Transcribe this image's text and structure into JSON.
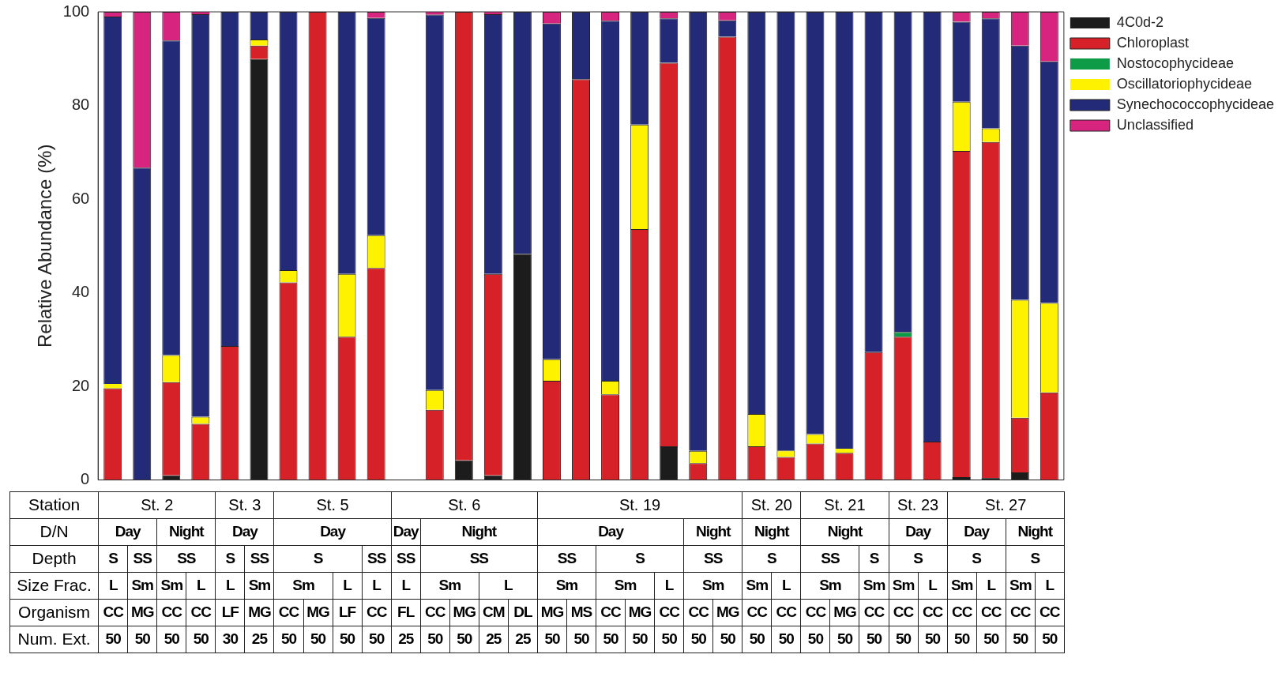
{
  "chart_data": {
    "type": "bar",
    "stacked": true,
    "ylabel": "Relative Abundance (%)",
    "categories": [
      null,
      null,
      null,
      null,
      null,
      null,
      null,
      null,
      null,
      null,
      null,
      null,
      null,
      null,
      null,
      null,
      null,
      null,
      null,
      null,
      null,
      null,
      null,
      null,
      null,
      null,
      null,
      null,
      null,
      null,
      null,
      null,
      null
    ],
    "ylim": [
      0,
      100
    ],
    "yticks": [
      0,
      20,
      40,
      60,
      80,
      100
    ],
    "grid": false,
    "legend": "top right",
    "series": [
      {
        "name": "4C0d-2",
        "color": "#1c1c1c",
        "values": [
          0,
          0,
          1.0,
          0,
          0,
          89.9,
          0,
          0,
          0,
          0,
          null,
          0,
          4.2,
          1.0,
          48.3,
          0,
          0,
          0,
          0,
          7.2,
          0,
          0,
          0,
          0,
          0,
          0,
          0,
          0,
          0,
          0.6,
          0.4,
          1.6,
          0
        ]
      },
      {
        "name": "Chloroplast",
        "color": "#d52127",
        "values": [
          19.6,
          0,
          19.9,
          12.0,
          28.6,
          2.9,
          42.2,
          100,
          30.6,
          45.3,
          null,
          15.0,
          95.8,
          43.0,
          0,
          21.2,
          85.6,
          18.3,
          53.6,
          81.9,
          3.6,
          94.7,
          7.2,
          4.9,
          7.8,
          5.8,
          27.3,
          30.6,
          8.2,
          69.7,
          71.8,
          11.7,
          18.7
        ]
      },
      {
        "name": "Nostocophycideae",
        "color": "#0d9b48",
        "values": [
          0,
          0,
          0,
          0,
          0,
          0,
          0,
          0,
          0,
          0,
          null,
          0,
          0,
          0,
          0,
          0,
          0,
          0,
          0,
          0,
          0,
          0,
          0,
          0,
          0,
          0,
          0,
          1.0,
          0,
          0,
          0,
          0,
          0
        ]
      },
      {
        "name": "Oscillatoriophycideae",
        "color": "#fff200",
        "values": [
          0.9,
          0,
          5.8,
          1.5,
          0,
          1.3,
          2.6,
          0,
          13.4,
          7.0,
          null,
          4.2,
          0,
          0,
          0,
          4.6,
          0,
          2.9,
          22.3,
          0,
          2.6,
          0,
          6.9,
          1.4,
          2.0,
          0.9,
          0,
          0,
          0,
          10.5,
          2.9,
          25.2,
          19.1
        ]
      },
      {
        "name": "Synechococcophycideae",
        "color": "#232a77",
        "values": [
          78.5,
          66.7,
          67.2,
          86.0,
          71.4,
          5.9,
          55.2,
          0,
          56.0,
          46.4,
          null,
          80.2,
          0,
          55.5,
          51.7,
          71.7,
          14.4,
          76.9,
          24.1,
          9.5,
          93.8,
          3.5,
          85.9,
          93.7,
          90.2,
          93.3,
          72.7,
          68.4,
          91.8,
          17.1,
          23.5,
          54.3,
          51.6
        ]
      },
      {
        "name": "Unclassified",
        "color": "#d6247f",
        "values": [
          1.0,
          33.3,
          6.1,
          0.5,
          0,
          0,
          0,
          0,
          0,
          1.3,
          null,
          0.6,
          0,
          0.5,
          0,
          2.5,
          0,
          1.9,
          0,
          1.4,
          0,
          1.8,
          0,
          0,
          0,
          0,
          0,
          0,
          0,
          2.1,
          1.4,
          7.2,
          10.6
        ]
      }
    ],
    "annotations": [
      "Station",
      "St. 2",
      "St. 3",
      "St. 5",
      "St. 6",
      "St. 19",
      "St. 20",
      "St. 21",
      "St. 23",
      "St. 27",
      "D/N",
      "Day",
      "Night",
      "Day",
      "Day",
      "Day",
      "Night",
      "Day",
      "Night",
      "Night",
      "Night",
      "Day",
      "Day",
      "Night",
      "Depth",
      "S",
      "SS",
      "SS",
      "S",
      "SS",
      "S",
      "SS",
      "SS",
      "SS",
      "SS",
      "S",
      "SS",
      "S",
      "SS",
      "S",
      "S",
      "S",
      "S",
      "Size Frac.",
      "L",
      "Sm",
      "Sm",
      "L",
      "L",
      "Sm",
      "Sm",
      "L",
      "L",
      "L",
      "Sm",
      "L",
      "Sm",
      "Sm",
      "L",
      "Sm",
      "Sm",
      "L",
      "Sm",
      "Sm",
      "Sm",
      "L",
      "Sm",
      "L",
      "Sm",
      "L",
      "Organism",
      "CC",
      "MG",
      "CC",
      "CC",
      "LF",
      "MG",
      "CC",
      "MG",
      "LF",
      "CC",
      "FL",
      "CC",
      "MG",
      "CM",
      "DL",
      "MG",
      "MS",
      "CC",
      "MG",
      "CC",
      "CC",
      "MG",
      "CC",
      "CC",
      "CC",
      "MG",
      "CC",
      "CC",
      "CC",
      "CC",
      "CC",
      "CC",
      "CC",
      "Num. Ext.",
      "50",
      "50",
      "50",
      "50",
      "30",
      "25",
      "50",
      "50",
      "50",
      "50",
      "25",
      "50",
      "50",
      "25",
      "25",
      "50",
      "50",
      "50",
      "50",
      "50",
      "50",
      "50",
      "50",
      "50",
      "50",
      "50",
      "50",
      "50",
      "50",
      "50",
      "50",
      "50",
      "50"
    ]
  }
}
